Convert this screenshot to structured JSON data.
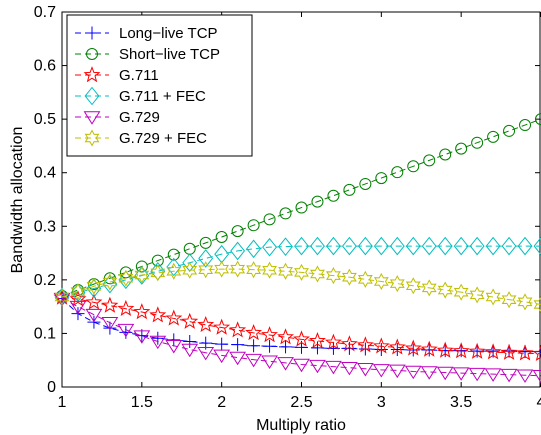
{
  "chart_data": {
    "type": "line",
    "xlabel": "Multiply ratio",
    "ylabel": "Bandwidth allocation",
    "xlim": [
      1,
      4
    ],
    "ylim": [
      0,
      0.7
    ],
    "x_ticks": [
      1,
      1.5,
      2,
      2.5,
      3,
      3.5,
      4
    ],
    "x_tick_labels": [
      "1",
      "1.5",
      "2",
      "2.5",
      "3",
      "3.5",
      "4"
    ],
    "y_ticks": [
      0,
      0.1,
      0.2,
      0.3,
      0.4,
      0.5,
      0.6,
      0.7
    ],
    "y_tick_labels": [
      "0",
      "0.1",
      "0.2",
      "0.3",
      "0.4",
      "0.5",
      "0.6",
      "0.7"
    ],
    "grid": false,
    "legend_position": "top-left",
    "x": [
      1.0,
      1.1,
      1.2,
      1.3,
      1.4,
      1.5,
      1.6,
      1.7,
      1.8,
      1.9,
      2.0,
      2.1,
      2.2,
      2.3,
      2.4,
      2.5,
      2.6,
      2.7,
      2.8,
      2.9,
      3.0,
      3.1,
      3.2,
      3.3,
      3.4,
      3.5,
      3.6,
      3.7,
      3.8,
      3.9,
      4.0
    ],
    "series": [
      {
        "name": "Long−live TCP",
        "color": "#0000ff",
        "marker": "plus",
        "values": [
          0.165,
          0.137,
          0.121,
          0.11,
          0.102,
          0.096,
          0.091,
          0.088,
          0.085,
          0.082,
          0.08,
          0.079,
          0.077,
          0.076,
          0.075,
          0.074,
          0.073,
          0.072,
          0.072,
          0.071,
          0.07,
          0.07,
          0.069,
          0.069,
          0.068,
          0.068,
          0.067,
          0.067,
          0.067,
          0.066,
          0.066
        ]
      },
      {
        "name": "Short−live TCP",
        "color": "#008000",
        "marker": "circle",
        "values": [
          0.17,
          0.181,
          0.192,
          0.203,
          0.214,
          0.225,
          0.236,
          0.247,
          0.258,
          0.269,
          0.28,
          0.291,
          0.302,
          0.313,
          0.324,
          0.335,
          0.346,
          0.357,
          0.368,
          0.379,
          0.39,
          0.401,
          0.412,
          0.423,
          0.434,
          0.445,
          0.456,
          0.467,
          0.478,
          0.489,
          0.5
        ]
      },
      {
        "name": "G.711",
        "color": "#ff0000",
        "marker": "star",
        "values": [
          0.167,
          0.164,
          0.158,
          0.152,
          0.146,
          0.14,
          0.134,
          0.128,
          0.122,
          0.116,
          0.111,
          0.106,
          0.101,
          0.097,
          0.093,
          0.089,
          0.086,
          0.083,
          0.08,
          0.078,
          0.076,
          0.074,
          0.072,
          0.07,
          0.068,
          0.067,
          0.066,
          0.065,
          0.064,
          0.063,
          0.062
        ]
      },
      {
        "name": "G.711 + FEC",
        "color": "#00bfbf",
        "marker": "diamond",
        "values": [
          0.168,
          0.176,
          0.184,
          0.192,
          0.2,
          0.208,
          0.216,
          0.224,
          0.232,
          0.24,
          0.248,
          0.254,
          0.258,
          0.261,
          0.262,
          0.263,
          0.263,
          0.263,
          0.263,
          0.263,
          0.263,
          0.263,
          0.263,
          0.263,
          0.263,
          0.263,
          0.263,
          0.263,
          0.263,
          0.263,
          0.263
        ]
      },
      {
        "name": "G.729",
        "color": "#bf00bf",
        "marker": "triangle-down",
        "values": [
          0.165,
          0.15,
          0.135,
          0.12,
          0.107,
          0.095,
          0.085,
          0.077,
          0.07,
          0.064,
          0.059,
          0.055,
          0.051,
          0.048,
          0.045,
          0.042,
          0.04,
          0.038,
          0.036,
          0.034,
          0.032,
          0.031,
          0.029,
          0.028,
          0.027,
          0.026,
          0.025,
          0.024,
          0.023,
          0.022,
          0.021
        ]
      },
      {
        "name": "G.729 + FEC",
        "color": "#bfbf00",
        "marker": "hexagram",
        "values": [
          0.168,
          0.178,
          0.188,
          0.196,
          0.203,
          0.209,
          0.213,
          0.216,
          0.218,
          0.219,
          0.22,
          0.22,
          0.219,
          0.218,
          0.216,
          0.214,
          0.211,
          0.208,
          0.205,
          0.201,
          0.197,
          0.193,
          0.189,
          0.185,
          0.181,
          0.177,
          0.172,
          0.168,
          0.163,
          0.159,
          0.154
        ]
      }
    ]
  }
}
